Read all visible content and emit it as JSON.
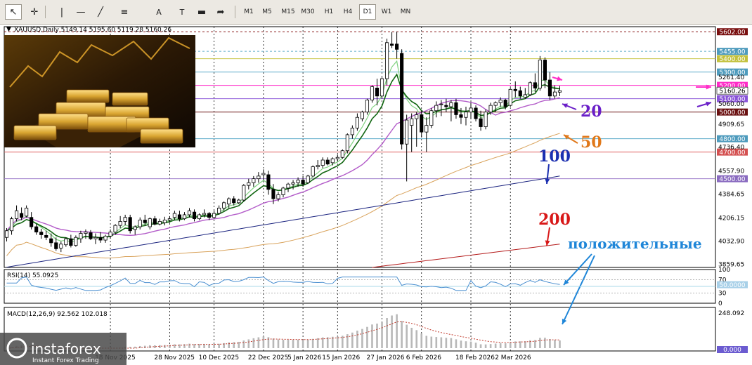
{
  "toolbar": {
    "tools": [
      {
        "name": "cursor-icon",
        "glyph": "↖"
      },
      {
        "name": "crosshair-icon",
        "glyph": "✛"
      },
      {
        "name": "vertical-line-icon",
        "glyph": "|"
      },
      {
        "name": "horizontal-line-icon",
        "glyph": "—"
      },
      {
        "name": "trendline-icon",
        "glyph": "╱"
      },
      {
        "name": "channel-icon",
        "glyph": "≡"
      },
      {
        "name": "text-tool-icon",
        "glyph": "A"
      },
      {
        "name": "text-label-icon",
        "glyph": "T"
      },
      {
        "name": "rectangle-icon",
        "glyph": "▬"
      },
      {
        "name": "arrow-shapes-icon",
        "glyph": "➦"
      }
    ],
    "timeframes": [
      "M1",
      "M5",
      "M15",
      "M30",
      "H1",
      "H4",
      "D1",
      "W1",
      "MN"
    ],
    "active_timeframe": "D1"
  },
  "chart_data": {
    "type": "candlestick",
    "symbol": "XAUUSD,Daily",
    "ohlc_header": "5149.14 5195.60 5119.28 5160.26",
    "candles": [
      [
        4060,
        4130,
        4030,
        4110
      ],
      [
        4110,
        4215,
        4080,
        4200
      ],
      [
        4200,
        4300,
        4180,
        4260
      ],
      [
        4240,
        4285,
        4190,
        4210
      ],
      [
        4220,
        4300,
        4210,
        4280
      ],
      [
        4210,
        4250,
        4120,
        4140
      ],
      [
        4140,
        4160,
        4080,
        4100
      ],
      [
        4100,
        4125,
        4050,
        4080
      ],
      [
        4075,
        4110,
        4040,
        4060
      ],
      [
        4050,
        4090,
        3990,
        4020
      ],
      [
        4020,
        4060,
        3960,
        3975
      ],
      [
        3980,
        4030,
        3950,
        4010
      ],
      [
        4005,
        4060,
        3990,
        4050
      ],
      [
        4050,
        4080,
        3985,
        4000
      ],
      [
        4000,
        4075,
        3990,
        4060
      ],
      [
        4050,
        4110,
        4020,
        4090
      ],
      [
        4090,
        4120,
        4050,
        4100
      ],
      [
        4095,
        4115,
        4040,
        4050
      ],
      [
        4050,
        4090,
        4010,
        4060
      ],
      [
        4060,
        4100,
        4020,
        4040
      ],
      [
        4040,
        4080,
        4020,
        4070
      ],
      [
        4070,
        4120,
        4050,
        4100
      ],
      [
        4100,
        4160,
        4080,
        4150
      ],
      [
        4150,
        4220,
        4130,
        4180
      ],
      [
        4180,
        4230,
        4150,
        4210
      ],
      [
        4210,
        4230,
        4090,
        4110
      ],
      [
        4120,
        4150,
        4080,
        4140
      ],
      [
        4140,
        4210,
        4120,
        4190
      ],
      [
        4190,
        4230,
        4150,
        4170
      ],
      [
        4140,
        4210,
        4120,
        4200
      ],
      [
        4200,
        4220,
        4150,
        4160
      ],
      [
        4160,
        4200,
        4150,
        4180
      ],
      [
        4170,
        4215,
        4150,
        4190
      ],
      [
        4190,
        4220,
        4170,
        4200
      ],
      [
        4210,
        4260,
        4190,
        4240
      ],
      [
        4230,
        4260,
        4180,
        4200
      ],
      [
        4200,
        4250,
        4190,
        4230
      ],
      [
        4230,
        4280,
        4210,
        4260
      ],
      [
        4250,
        4270,
        4180,
        4200
      ],
      [
        4200,
        4240,
        4190,
        4230
      ],
      [
        4230,
        4270,
        4210,
        4240
      ],
      [
        4240,
        4250,
        4190,
        4210
      ],
      [
        4210,
        4260,
        4200,
        4240
      ],
      [
        4240,
        4300,
        4230,
        4280
      ],
      [
        4280,
        4330,
        4260,
        4320
      ],
      [
        4310,
        4360,
        4280,
        4350
      ],
      [
        4350,
        4370,
        4300,
        4320
      ],
      [
        4320,
        4350,
        4310,
        4340
      ],
      [
        4340,
        4460,
        4330,
        4450
      ],
      [
        4450,
        4500,
        4420,
        4470
      ],
      [
        4470,
        4520,
        4440,
        4500
      ],
      [
        4500,
        4550,
        4470,
        4520
      ],
      [
        4530,
        4570,
        4490,
        4540
      ],
      [
        4530,
        4560,
        4380,
        4420
      ],
      [
        4420,
        4460,
        4310,
        4350
      ],
      [
        4350,
        4400,
        4330,
        4380
      ],
      [
        4380,
        4440,
        4360,
        4430
      ],
      [
        4430,
        4470,
        4400,
        4460
      ],
      [
        4460,
        4490,
        4420,
        4470
      ],
      [
        4470,
        4510,
        4440,
        4490
      ],
      [
        4490,
        4520,
        4440,
        4460
      ],
      [
        4470,
        4530,
        4460,
        4520
      ],
      [
        4520,
        4600,
        4510,
        4590
      ],
      [
        4590,
        4640,
        4570,
        4600
      ],
      [
        4600,
        4660,
        4580,
        4640
      ],
      [
        4640,
        4660,
        4600,
        4610
      ],
      [
        4620,
        4660,
        4600,
        4650
      ],
      [
        4650,
        4680,
        4630,
        4660
      ],
      [
        4660,
        4720,
        4650,
        4710
      ],
      [
        4710,
        4840,
        4690,
        4830
      ],
      [
        4830,
        4900,
        4800,
        4880
      ],
      [
        4880,
        4990,
        4860,
        4960
      ],
      [
        4950,
        5010,
        4930,
        5000
      ],
      [
        5000,
        5100,
        4980,
        5090
      ],
      [
        5090,
        5200,
        5070,
        5190
      ],
      [
        5180,
        5250,
        5050,
        5120
      ],
      [
        5120,
        5260,
        5100,
        5250
      ],
      [
        5250,
        5550,
        5200,
        5520
      ],
      [
        5510,
        5600,
        5480,
        5500
      ],
      [
        5510,
        5602,
        5400,
        5470
      ],
      [
        5440,
        5470,
        4720,
        4760
      ],
      [
        4760,
        4980,
        4480,
        4940
      ],
      [
        4900,
        4990,
        4700,
        4950
      ],
      [
        4950,
        5000,
        4740,
        4980
      ],
      [
        4980,
        5010,
        4810,
        4850
      ],
      [
        4850,
        4960,
        4700,
        4900
      ],
      [
        4900,
        5030,
        4880,
        5010
      ],
      [
        5010,
        5080,
        4960,
        5050
      ],
      [
        5060,
        5090,
        4970,
        5060
      ],
      [
        5050,
        5100,
        5000,
        5040
      ],
      [
        5040,
        5090,
        4930,
        5070
      ],
      [
        5070,
        5100,
        4950,
        4980
      ],
      [
        4980,
        5030,
        4910,
        4960
      ],
      [
        4960,
        5040,
        4900,
        5000
      ],
      [
        5000,
        5070,
        4950,
        5030
      ],
      [
        5030,
        5050,
        4930,
        4950
      ],
      [
        4950,
        5010,
        4860,
        4890
      ],
      [
        4890,
        5020,
        4870,
        5000
      ],
      [
        5000,
        5070,
        4980,
        5050
      ],
      [
        5050,
        5080,
        5000,
        5070
      ],
      [
        5070,
        5110,
        5040,
        5090
      ],
      [
        5090,
        5100,
        5020,
        5040
      ],
      [
        5050,
        5180,
        5040,
        5170
      ],
      [
        5170,
        5230,
        5110,
        5160
      ],
      [
        5160,
        5190,
        5100,
        5120
      ],
      [
        5110,
        5180,
        5100,
        5130
      ],
      [
        5130,
        5230,
        5120,
        5220
      ],
      [
        5220,
        5290,
        5150,
        5180
      ],
      [
        5180,
        5420,
        5160,
        5390
      ],
      [
        5390,
        5410,
        5180,
        5240
      ],
      [
        5240,
        5300,
        5090,
        5120
      ],
      [
        5120,
        5200,
        5100,
        5150
      ],
      [
        5149.14,
        5195.6,
        5119.28,
        5160.26
      ]
    ],
    "ma_labels": [
      {
        "text": "20",
        "color": "#6a1fc8"
      },
      {
        "text": "50",
        "color": "#e0781a"
      },
      {
        "text": "100",
        "color": "#1c2fb0"
      },
      {
        "text": "200",
        "color": "#d81818"
      }
    ],
    "ma_values": {
      "sma20_last": 5100,
      "sma50_last": 4840,
      "sma100_last": 4520,
      "sma200_last": 4010
    },
    "levels": [
      {
        "value": 5602.0,
        "label": "5602.00",
        "color": "#8b1a1a",
        "line": "dashed",
        "tag_bg": "#7a1010",
        "tag_fg": "#ffffff"
      },
      {
        "value": 5455.0,
        "label": "5455.00",
        "color": "#5aaac8",
        "line": "dashed",
        "tag_bg": "#4e9bbd",
        "tag_fg": "#ffffff"
      },
      {
        "value": 5400.0,
        "label": "5400.00",
        "color": "#c8c64a",
        "line": "solid",
        "tag_bg": "#c3c13c",
        "tag_fg": "#ffffff"
      },
      {
        "value": 5300.0,
        "label": "5300.00",
        "color": "#5aaac8",
        "line": "solid",
        "tag_bg": "#4e9bbd",
        "tag_fg": "#ffffff"
      },
      {
        "value": 5200.0,
        "label": "5200.00",
        "color": "#ff2cc8",
        "line": "solid",
        "tag_bg": "#ff2cc8",
        "tag_fg": "#ffffff"
      },
      {
        "value": 5100.0,
        "label": "5100.00",
        "color": "#8a55d8",
        "line": "solid",
        "tag_bg": "#8a55d8",
        "tag_fg": "#ffffff"
      },
      {
        "value": 5000.0,
        "label": "5000.00",
        "color": "#6a1010",
        "line": "solid",
        "tag_bg": "#6a1010",
        "tag_fg": "#ffffff"
      },
      {
        "value": 4800.0,
        "label": "4800.00",
        "color": "#5aaac8",
        "line": "solid",
        "tag_bg": "#4e9bbd",
        "tag_fg": "#ffffff"
      },
      {
        "value": 4700.0,
        "label": "4700.00",
        "color": "#e06060",
        "line": "solid",
        "tag_bg": "#d45050",
        "tag_fg": "#ffffff"
      },
      {
        "value": 4500.0,
        "label": "4500.00",
        "color": "#9a78c8",
        "line": "solid",
        "tag_bg": "#8a6bc0",
        "tag_fg": "#ffffff"
      }
    ],
    "current_price": {
      "value": 5160.26,
      "label": "5160.26"
    },
    "price_ticks": [
      {
        "v": 5261.4,
        "t": "5261.40"
      },
      {
        "v": 5060.0,
        "t": "5060.00"
      },
      {
        "v": 4909.65,
        "t": "4909.65"
      },
      {
        "v": 4736.4,
        "t": "4736.40"
      },
      {
        "v": 4557.9,
        "t": "4557.90"
      },
      {
        "v": 4384.65,
        "t": "4384.65"
      },
      {
        "v": 4206.15,
        "t": "4206.15"
      },
      {
        "v": 4032.9,
        "t": "4032.90"
      },
      {
        "v": 3859.65,
        "t": "3859.65"
      }
    ],
    "ylim": [
      3835,
      5640
    ],
    "rsi": {
      "label": "RSI(14) 55.0925",
      "levels": [
        70,
        50,
        30,
        0
      ],
      "current_tag": "50.0000",
      "ticks": [
        "100",
        "70",
        "30",
        "0"
      ]
    },
    "macd": {
      "label": "MACD(12,26,9) 92.562 102.018",
      "tick_top": "248.092",
      "current_tag": "0.000"
    },
    "date_ticks": [
      {
        "i": 21,
        "t": "18 Nov 2025"
      },
      {
        "i": 33,
        "t": "28 Nov 2025"
      },
      {
        "i": 42,
        "t": "10 Dec 2025"
      },
      {
        "i": 52,
        "t": "22 Dec 2025"
      },
      {
        "i": 60,
        "t": "5 Jan 2026"
      },
      {
        "i": 67,
        "t": "15 Jan 2026"
      },
      {
        "i": 76,
        "t": "27 Jan 2026"
      },
      {
        "i": 84,
        "t": "6 Feb 2026"
      },
      {
        "i": 94,
        "t": "18 Feb 2026"
      },
      {
        "i": 102,
        "t": "2 Mar 2026"
      }
    ],
    "annotation": "положительные"
  },
  "watermark": {
    "brand": "instaforex",
    "tagline": "Instant Forex Trading"
  },
  "colors": {
    "up_body": "#ffffff",
    "down_body": "#000000",
    "candle_line": "#000000",
    "grid": "#000000",
    "sma_fast": "#116611",
    "sma_fast2": "#7fd27f",
    "sma20": "#b35cc9",
    "sma50": "#d9a35c",
    "sma100": "#1c2580",
    "sma200": "#b41a1a",
    "rsi": "#4a8fd0",
    "macd_hist": "#b8b8b8",
    "macd_signal": "#c0392b",
    "annotation": "#1f86d8"
  }
}
